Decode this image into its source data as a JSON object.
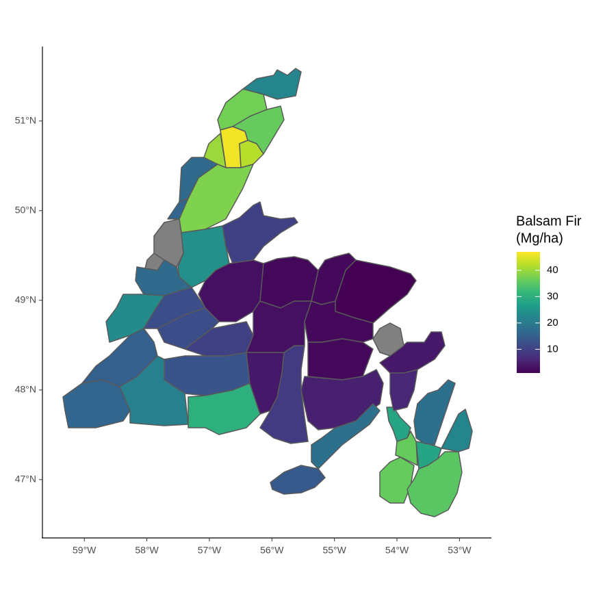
{
  "chart_data": {
    "type": "map",
    "xticks": [
      {
        "value": -59,
        "label": "59°W"
      },
      {
        "value": -58,
        "label": "58°W"
      },
      {
        "value": -57,
        "label": "57°W"
      },
      {
        "value": -56,
        "label": "56°W"
      },
      {
        "value": -55,
        "label": "55°W"
      },
      {
        "value": -54,
        "label": "54°W"
      },
      {
        "value": -53,
        "label": "53°W"
      }
    ],
    "yticks": [
      {
        "value": 51,
        "label": "51°N"
      },
      {
        "value": 50,
        "label": "50°N"
      },
      {
        "value": 49,
        "label": "49°N"
      },
      {
        "value": 48,
        "label": "48°N"
      },
      {
        "value": 47,
        "label": "47°N"
      }
    ],
    "xlim": [
      -59.67,
      -52.49
    ],
    "ylim": [
      46.35,
      51.83
    ],
    "legend_title": [
      "Balsam Fir",
      "(Mg/ha)"
    ],
    "colorbar_lim": [
      1,
      47
    ],
    "colorbar_ticks": [
      10,
      20,
      30,
      40
    ],
    "colors": [
      "#440154",
      "#482878",
      "#3e4989",
      "#31688e",
      "#26828e",
      "#1f9e89",
      "#35b779",
      "#6ece58",
      "#b5de2b",
      "#fde725"
    ],
    "na_color": "#808080",
    "values": [
      22,
      37,
      36,
      46,
      42,
      40,
      17,
      16,
      38,
      null,
      null,
      24,
      17,
      23,
      10,
      3,
      2,
      2,
      1,
      12,
      12,
      10,
      13,
      30,
      16,
      21,
      15,
      4,
      9,
      3,
      2,
      2,
      5,
      4,
      null,
      18,
      14,
      28,
      36,
      36,
      28,
      35,
      18,
      22,
      6
    ]
  }
}
